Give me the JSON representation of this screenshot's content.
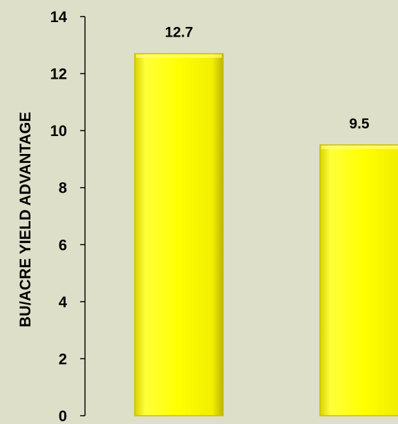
{
  "chart_data": {
    "type": "bar",
    "categories": [
      "",
      ""
    ],
    "values": [
      12.7,
      9.5
    ],
    "data_labels": [
      "12.7",
      "9.5"
    ],
    "title": "",
    "xlabel": "",
    "ylabel": "BU/ACRE YIELD ADVANTAGE",
    "ylim": [
      0,
      14
    ],
    "yticks": [
      0,
      2,
      4,
      6,
      8,
      10,
      12,
      14
    ],
    "ytick_labels": [
      "0",
      "2",
      "4",
      "6",
      "8",
      "10",
      "12",
      "14"
    ],
    "grid": false,
    "legend": "none",
    "colors": {
      "background": "#dedfc8",
      "bar_fill": "#ffff00",
      "bar_edge": "#c9c000",
      "axis": "#000000"
    }
  }
}
